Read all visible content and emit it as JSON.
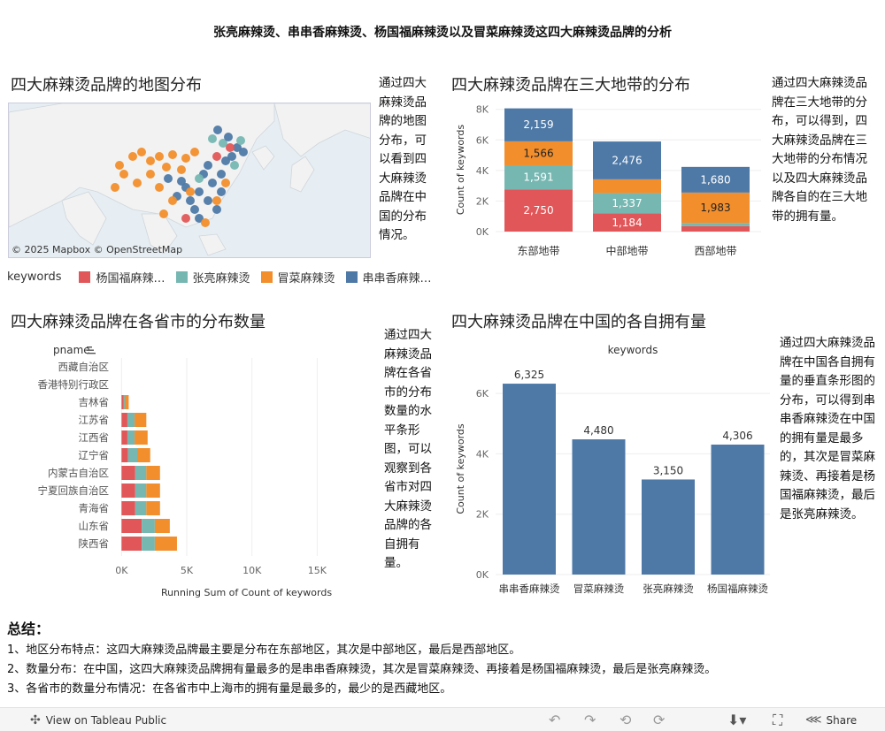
{
  "title": "张亮麻辣烫、串串香麻辣烫、杨国福麻辣烫以及冒菜麻辣烫这四大麻辣烫品牌的分析",
  "colors": {
    "yangguofu": "#e15759",
    "zhangliang": "#76b7b2",
    "maocai": "#f28e2b",
    "chuanchuan": "#4e79a7"
  },
  "map": {
    "title": "四大麻辣烫品牌的地图分布",
    "attribution": "© 2025 Mapbox  © OpenStreetMap",
    "desc": "通过四大麻辣烫品牌的地图分布，可以看到四大麻辣烫品牌在中国的分布情况。"
  },
  "legend": {
    "title": "keywords",
    "items": [
      {
        "label": "杨国福麻辣…",
        "color": "#e15759"
      },
      {
        "label": "张亮麻辣烫",
        "color": "#76b7b2"
      },
      {
        "label": "冒菜麻辣烫",
        "color": "#f28e2b"
      },
      {
        "label": "串串香麻辣…",
        "color": "#4e79a7"
      }
    ]
  },
  "belt": {
    "title": "四大麻辣烫品牌在三大地带的分布",
    "desc": "通过四大麻辣烫品牌在三大地带的分布，可以得到，四大麻辣烫品牌在三大地带的分布情况以及四大麻辣烫品牌各自的在三大地带的拥有量。"
  },
  "province": {
    "title": "四大麻辣烫品牌在各省市的分布数量",
    "desc": "通过四大麻辣烫品牌在各省市的分布数量的水平条形图，可以观察到各省市对四大麻辣烫品牌的各自拥有量。",
    "row_header": "pname"
  },
  "total": {
    "title": "四大麻辣烫品牌在中国的各自拥有量",
    "desc": "通过四大麻辣烫品牌在中国各自拥有量的垂直条形图的分布，可以得到串串香麻辣烫在中国的拥有量是最多的，其次是冒菜麻辣烫、再接着是杨国福麻辣烫，最后是张亮麻辣烫。"
  },
  "summary": {
    "title": "总结：",
    "lines": [
      "1、地区分布特点：这四大麻辣烫品牌最主要是分布在东部地区，其次是中部地区，最后是西部地区。",
      "2、数量分布：在中国，这四大麻辣烫品牌拥有量最多的是串串香麻辣烫，其次是冒菜麻辣烫、再接着是杨国福麻辣烫，最后是张亮麻辣烫。",
      "3、各省市的数量分布情况：在各省市中上海市的拥有量是最多的，最少的是西藏地区。"
    ]
  },
  "footer": {
    "view_label": "View on Tableau Public",
    "share_label": "Share"
  },
  "chart_data": [
    {
      "type": "bar",
      "stacked": true,
      "categories": [
        "东部地带",
        "中部地带",
        "西部地带"
      ],
      "series": [
        {
          "name": "杨国福麻辣烫",
          "values": [
            2750,
            1184,
            350
          ],
          "labels": [
            "2,750",
            "1,184",
            ""
          ]
        },
        {
          "name": "张亮麻辣烫",
          "values": [
            1591,
            1337,
            220
          ],
          "labels": [
            "1,591",
            "1,337",
            ""
          ]
        },
        {
          "name": "冒菜麻辣烫",
          "values": [
            1566,
            900,
            1983
          ],
          "labels": [
            "1,566",
            "",
            "1,983"
          ]
        },
        {
          "name": "串串香麻辣烫",
          "values": [
            2159,
            2476,
            1680
          ],
          "labels": [
            "2,159",
            "2,476",
            "1,680"
          ]
        }
      ],
      "ylabel": "Count of keywords",
      "yticks": [
        "0K",
        "2K",
        "4K",
        "6K",
        "8K"
      ],
      "ylim": [
        0,
        8100
      ]
    },
    {
      "type": "bar",
      "orientation": "horizontal",
      "stacked": true,
      "categories": [
        "西藏自治区",
        "香港特别行政区",
        "吉林省",
        "江苏省",
        "江西省",
        "辽宁省",
        "内蒙古自治区",
        "宁夏回族自治区",
        "青海省",
        "山东省",
        "陕西省"
      ],
      "series": [
        {
          "name": "杨国福麻辣烫",
          "values": [
            0,
            0,
            150,
            450,
            450,
            500,
            1050,
            1050,
            1050,
            1550,
            1550
          ]
        },
        {
          "name": "张亮麻辣烫",
          "values": [
            0,
            0,
            100,
            550,
            550,
            700,
            850,
            850,
            850,
            1000,
            1000
          ]
        },
        {
          "name": "冒菜麻辣烫",
          "values": [
            0,
            0,
            300,
            900,
            1000,
            1000,
            1050,
            1050,
            1050,
            1150,
            1700
          ]
        }
      ],
      "xlabel": "Running Sum of Count of keywords",
      "xticks": [
        "0K",
        "5K",
        "10K",
        "15K"
      ],
      "xlim": [
        -700,
        18500
      ]
    },
    {
      "type": "bar",
      "categories": [
        "串串香麻辣烫",
        "冒菜麻辣烫",
        "张亮麻辣烫",
        "杨国福麻辣烫"
      ],
      "values": [
        6325,
        4480,
        3150,
        4306
      ],
      "labels": [
        "6,325",
        "4,480",
        "3,150",
        "4,306"
      ],
      "title": "keywords",
      "ylabel": "Count of keywords",
      "yticks": [
        "0K",
        "2K",
        "4K",
        "6K"
      ],
      "ylim": [
        0,
        7000
      ]
    }
  ]
}
